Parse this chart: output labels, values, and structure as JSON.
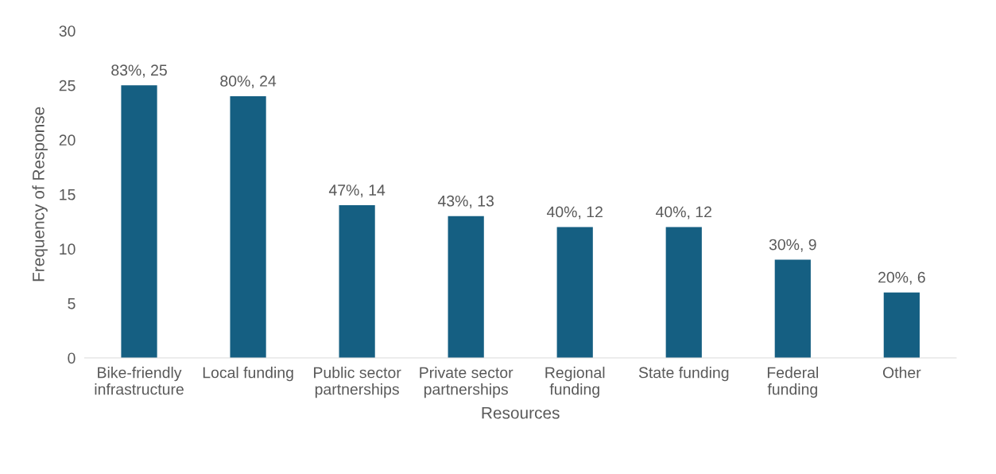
{
  "chart_data": {
    "type": "bar",
    "xlabel": "Resources",
    "ylabel": "Frequency of Response",
    "categories": [
      "Bike-friendly infrastructure",
      "Local funding",
      "Public sector partnerships",
      "Private sector partnerships",
      "Regional funding",
      "State funding",
      "Federal funding",
      "Other"
    ],
    "values": [
      25,
      24,
      14,
      13,
      12,
      12,
      9,
      6
    ],
    "value_labels": [
      "83%, 25",
      "80%, 24",
      "47%, 14",
      "43%, 13",
      "40%, 12",
      "40%, 12",
      "30%, 9",
      "20%, 6"
    ],
    "color": "#155f82",
    "ylim": [
      0,
      30
    ],
    "yticks": [
      0,
      5,
      10,
      15,
      20,
      25,
      30
    ],
    "grid": false
  }
}
